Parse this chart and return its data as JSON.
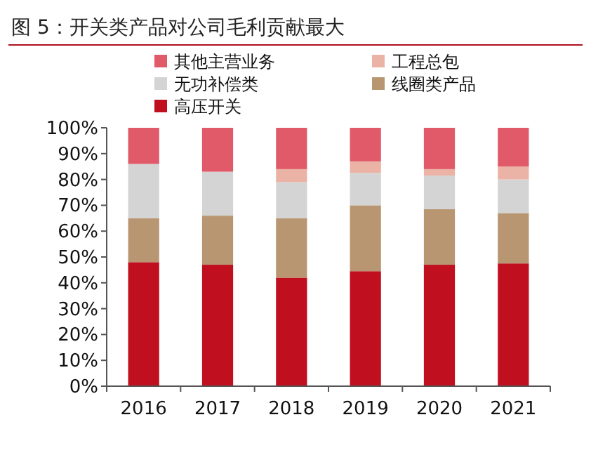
{
  "chart_data": {
    "type": "bar",
    "title": "图 5：开关类产品对公司毛利贡献最大",
    "stacked": true,
    "legend": "top",
    "categories": [
      "2016",
      "2017",
      "2018",
      "2019",
      "2020",
      "2021"
    ],
    "series": [
      {
        "name": "高压开关",
        "color": "#c00f1e",
        "values": [
          48,
          47,
          42,
          44.5,
          47,
          47.5
        ]
      },
      {
        "name": "线圈类产品",
        "color": "#b89672",
        "values": [
          17,
          19,
          23,
          25.5,
          21.5,
          19.5
        ]
      },
      {
        "name": "无功补偿类",
        "color": "#d4d4d4",
        "values": [
          21,
          17,
          14,
          12.5,
          13,
          13
        ]
      },
      {
        "name": "工程总包",
        "color": "#ebb3a6",
        "values": [
          0,
          0,
          5,
          4.5,
          2.5,
          5
        ]
      },
      {
        "name": "其他主营业务",
        "color": "#e05a6a",
        "values": [
          14,
          17,
          16,
          13,
          16,
          15
        ]
      }
    ],
    "ylim": [
      0,
      100
    ],
    "yticks": [
      {
        "value": 0,
        "label": "0%"
      },
      {
        "value": 10,
        "label": "10%"
      },
      {
        "value": 20,
        "label": "20%"
      },
      {
        "value": 30,
        "label": "30%"
      },
      {
        "value": 40,
        "label": "40%"
      },
      {
        "value": 50,
        "label": "50%"
      },
      {
        "value": 60,
        "label": "60%"
      },
      {
        "value": 70,
        "label": "70%"
      },
      {
        "value": 80,
        "label": "80%"
      },
      {
        "value": 90,
        "label": "90%"
      },
      {
        "value": 100,
        "label": "100%"
      }
    ]
  }
}
